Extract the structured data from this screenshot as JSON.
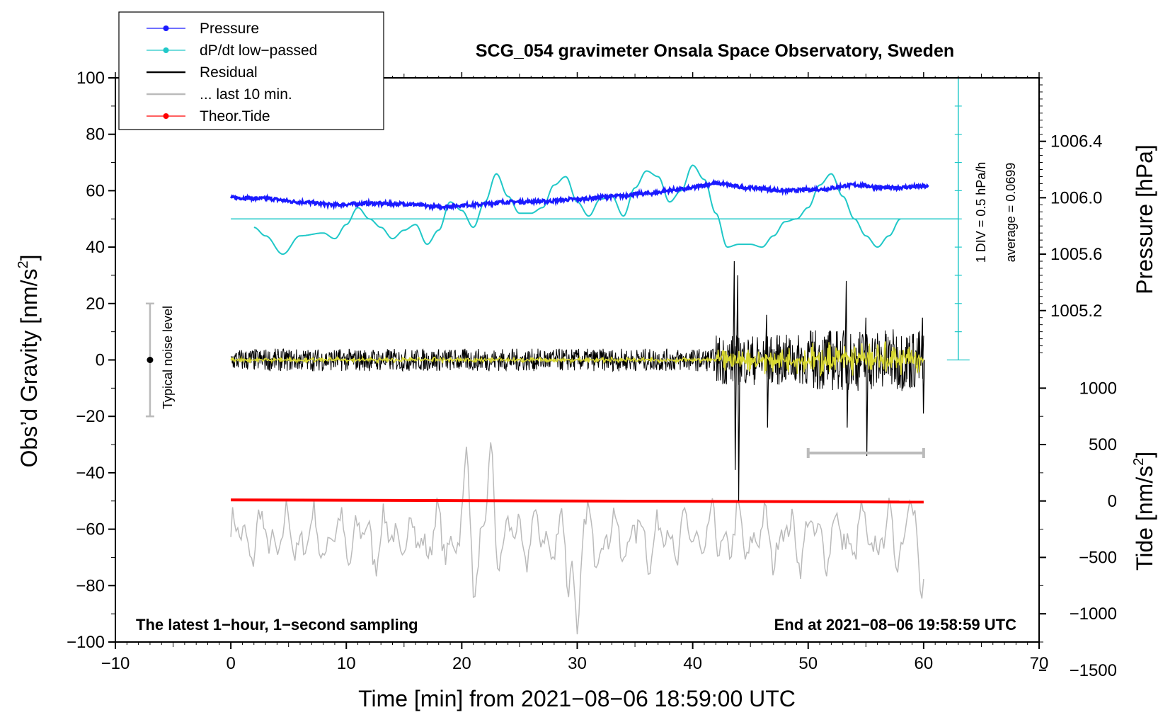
{
  "chart_data": {
    "type": "line",
    "title": "SCG_054 gravimeter Onsala Space Observatory, Sweden",
    "xlabel": "Time [min] from 2021−08−06 18:59:00 UTC",
    "ylabel_left": "Obs’d Gravity [nm/s",
    "ylabel_left_sup": "2",
    "ylabel_left_close": "]",
    "ylabel_pressure": "Pressure [hPa]",
    "ylabel_tide": "Tide [nm/s",
    "ylabel_tide_sup": "2",
    "ylabel_tide_close": "]",
    "xlim": [
      -10,
      70
    ],
    "ylim": [
      -100,
      100
    ],
    "x_ticks": [
      -10,
      0,
      10,
      20,
      30,
      40,
      50,
      60,
      70
    ],
    "x_tick_labels": [
      "−10",
      "0",
      "10",
      "20",
      "30",
      "40",
      "50",
      "60",
      "70"
    ],
    "y_ticks": [
      100,
      80,
      60,
      40,
      20,
      0,
      -20,
      -40,
      -60,
      -80,
      -100
    ],
    "y_tick_labels": [
      "100",
      "80",
      "60",
      "40",
      "20",
      "0",
      "−20",
      "−40",
      "−60",
      "−80",
      "−100"
    ],
    "pressure_axis": {
      "ticks": [
        1005.2,
        1005.6,
        1006.0,
        1006.4
      ],
      "tick_labels": [
        "1005.2",
        "1005.6",
        "1006.0",
        "1006.4"
      ],
      "map": {
        "value_at_gravity_0": 1004.85,
        "hPa_per_gravity_unit": 0.02
      }
    },
    "tide_axis": {
      "ticks": [
        1000,
        500,
        0,
        -500,
        -1000,
        -1500
      ],
      "tick_labels": [
        "1000",
        "500",
        "0",
        "−500",
        "−1000",
        "−1500"
      ],
      "map": {
        "value_at_gravity_neg50": 0,
        "nm_per_gravity_unit": 25
      }
    },
    "legend": [
      {
        "label": "Pressure",
        "color": "#1a1aff",
        "marker": "dot"
      },
      {
        "label": "dP/dt low−passed",
        "color": "#20c8c8",
        "marker": "dot"
      },
      {
        "label": "Residual",
        "color": "#000000",
        "marker": "none"
      },
      {
        "label": "... last 10 min.",
        "color": "#bbbbbb",
        "marker": "none"
      },
      {
        "label": "Theor.Tide",
        "color": "#ff0000",
        "marker": "dot"
      }
    ],
    "series": [
      {
        "name": "Pressure",
        "color": "#1a1aff",
        "x": [
          0,
          3,
          6,
          9,
          12,
          15,
          18,
          21,
          24,
          27,
          30,
          33,
          36,
          39,
          42,
          45,
          48,
          51,
          54,
          57,
          60
        ],
        "values": [
          57.5,
          57.2,
          56,
          55,
          55.5,
          55.3,
          54.3,
          55,
          56,
          56.2,
          57,
          58,
          59,
          60.5,
          62.5,
          61,
          60,
          60.5,
          62,
          61,
          61.5
        ]
      },
      {
        "name": "dP/dt low-passed",
        "color": "#20c8c8",
        "baseline": 50,
        "x": [
          2,
          3,
          4.5,
          6,
          8,
          9,
          10,
          11,
          12,
          13,
          14,
          15,
          16,
          17,
          18,
          19,
          20,
          21,
          22,
          23,
          24,
          25,
          26,
          27,
          28,
          29,
          30,
          31,
          32,
          33,
          34,
          35,
          36,
          37,
          38,
          39,
          40,
          41,
          42,
          43,
          44,
          45,
          46,
          47,
          48,
          49,
          50,
          51,
          52,
          53,
          54,
          55,
          56,
          57,
          58
        ],
        "values": [
          47,
          44,
          37.5,
          44,
          45,
          43,
          48,
          54,
          50,
          47,
          43,
          46,
          48,
          41,
          46,
          56,
          53,
          47,
          56,
          66,
          58,
          52,
          52,
          54,
          62,
          65,
          56,
          51,
          57,
          58,
          51,
          61,
          67,
          65,
          56,
          60,
          69,
          64,
          52,
          40,
          41,
          41,
          40,
          44,
          49,
          50,
          54,
          62,
          66,
          58,
          50,
          44,
          40,
          44,
          50
        ]
      },
      {
        "name": "Residual",
        "color": "#000000",
        "x_end": 60,
        "events": [
          {
            "x": 43.6,
            "min": -39,
            "max": 35
          },
          {
            "x": 43.9,
            "min": -50,
            "max": 30
          },
          {
            "x": 46.4,
            "min": -24,
            "max": 16
          },
          {
            "x": 53.3,
            "min": -24,
            "max": 28
          },
          {
            "x": 55,
            "min": -34,
            "max": 15
          },
          {
            "x": 59.9,
            "min": -19,
            "max": 15
          }
        ]
      },
      {
        "name": "Short-period residual",
        "color": "#d8d830",
        "x_end": 60
      },
      {
        "name": "Theor.Tide",
        "color": "#ff0000",
        "x": [
          0,
          60
        ],
        "values": [
          -49.6,
          -50.4
        ]
      },
      {
        "name": "... last 10 min.",
        "color": "#bbbbbb",
        "x_end": 60,
        "baseline": -63,
        "peaks": [
          {
            "x": 20.5,
            "y": -34
          },
          {
            "x": 22.5,
            "y": -35
          },
          {
            "x": 30,
            "y": -96
          },
          {
            "x": 29.2,
            "y": -78
          },
          {
            "x": 21.2,
            "y": -80
          },
          {
            "x": 59.7,
            "y": -81
          },
          {
            "x": 58.8,
            "y": -46
          }
        ]
      }
    ],
    "annotations": {
      "noise_label": "Typical noise level",
      "noise_bar": {
        "x": -7,
        "center": 0,
        "half_range": 20
      },
      "scale_label": "1 DIV = 0.5 hPa/h",
      "average_label": "average = 0.0699",
      "scale_axis": {
        "x": 63,
        "from": 0,
        "to": 100
      },
      "window_bar": {
        "from": 50,
        "to": 60,
        "y": -33
      },
      "bottom_left": "The latest 1−hour, 1−second sampling",
      "bottom_right": "End at 2021−08−06 19:58:59 UTC"
    }
  }
}
